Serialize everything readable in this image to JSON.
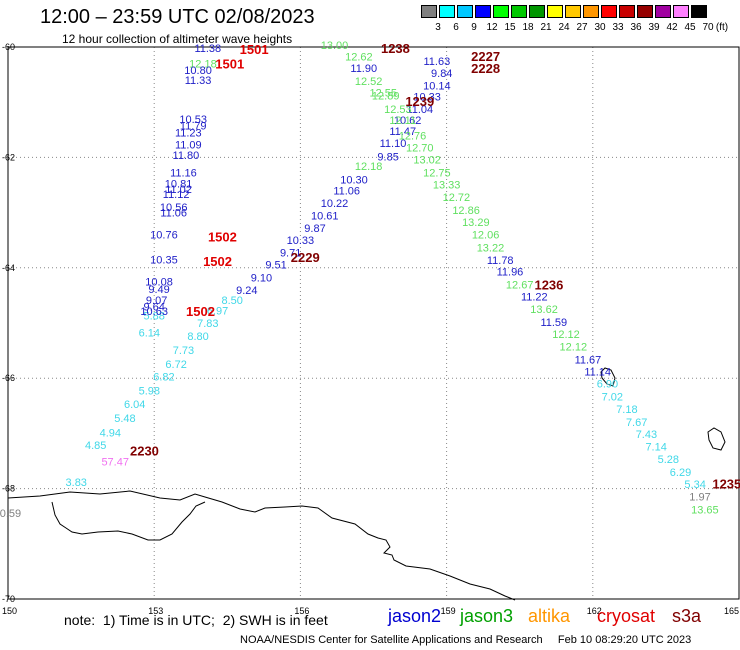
{
  "header": {
    "title": "12:00 – 23:59 UTC 02/08/2023",
    "subtitle": "12 hour collection of altimeter wave heights"
  },
  "legend": {
    "unit": "(ft)",
    "colors": [
      "#808080",
      "#00ffff",
      "#00c8ff",
      "#0000ff",
      "#00ff00",
      "#00c800",
      "#009600",
      "#ffff00",
      "#ffc800",
      "#ff9600",
      "#ff0000",
      "#c80000",
      "#960000",
      "#a000a0",
      "#ff80ff",
      "#000000"
    ],
    "labels": [
      "3",
      "6",
      "9",
      "12",
      "15",
      "18",
      "21",
      "24",
      "27",
      "30",
      "33",
      "36",
      "39",
      "42",
      "45",
      "70"
    ]
  },
  "axes": {
    "lat_labels": [
      "-60",
      "-62",
      "-64",
      "-66",
      "-68",
      "-70"
    ],
    "lon_labels": [
      "150",
      "153",
      "156",
      "159",
      "162",
      "165"
    ]
  },
  "points": [
    {
      "lon": 151.4,
      "lat": -67.88,
      "v": "3.83",
      "c": "#40d8e8"
    },
    {
      "lon": 150.05,
      "lat": -68.44,
      "v": "0.59",
      "c": "#808080"
    },
    {
      "lon": 152.2,
      "lat": -67.51,
      "v": "57.47",
      "c": "#f070f0"
    },
    {
      "lon": 151.8,
      "lat": -67.21,
      "v": "4.85",
      "c": "#40d8e8"
    },
    {
      "lon": 152.1,
      "lat": -66.98,
      "v": "4.94",
      "c": "#40d8e8"
    },
    {
      "lon": 152.4,
      "lat": -66.72,
      "v": "5.48",
      "c": "#40d8e8"
    },
    {
      "lon": 152.6,
      "lat": -66.47,
      "v": "6.04",
      "c": "#40d8e8"
    },
    {
      "lon": 152.9,
      "lat": -66.22,
      "v": "5.98",
      "c": "#40d8e8"
    },
    {
      "lon": 153.2,
      "lat": -65.97,
      "v": "6.82",
      "c": "#40d8e8"
    },
    {
      "lon": 153.45,
      "lat": -65.74,
      "v": "6.72",
      "c": "#40d8e8"
    },
    {
      "lon": 153.6,
      "lat": -65.49,
      "v": "7.73",
      "c": "#40d8e8"
    },
    {
      "lon": 153.9,
      "lat": -65.24,
      "v": "8.80",
      "c": "#40d8e8"
    },
    {
      "lon": 154.1,
      "lat": -65.0,
      "v": "7.83",
      "c": "#40d8e8"
    },
    {
      "lon": 154.3,
      "lat": -64.77,
      "v": "6.97",
      "c": "#40d8e8"
    },
    {
      "lon": 154.6,
      "lat": -64.58,
      "v": "8.50",
      "c": "#40d8e8"
    },
    {
      "lon": 152.9,
      "lat": -65.17,
      "v": "6.14",
      "c": "#40d8e8"
    },
    {
      "lon": 153.0,
      "lat": -64.86,
      "v": "5.88",
      "c": "#40d8e8"
    },
    {
      "lon": 153.0,
      "lat": -64.78,
      "v": "10.63",
      "c": "#2020c8"
    },
    {
      "lon": 153.0,
      "lat": -64.7,
      "v": "9.64",
      "c": "#2020c8"
    },
    {
      "lon": 153.05,
      "lat": -64.58,
      "v": "9.07",
      "c": "#2020c8"
    },
    {
      "lon": 153.1,
      "lat": -64.38,
      "v": "9.49",
      "c": "#2020c8"
    },
    {
      "lon": 153.1,
      "lat": -64.25,
      "v": "10.08",
      "c": "#2020c8"
    },
    {
      "lon": 154.9,
      "lat": -64.4,
      "v": "9.24",
      "c": "#2020c8"
    },
    {
      "lon": 155.2,
      "lat": -64.18,
      "v": "9.10",
      "c": "#2020c8"
    },
    {
      "lon": 155.5,
      "lat": -63.94,
      "v": "9.51",
      "c": "#2020c8"
    },
    {
      "lon": 155.8,
      "lat": -63.72,
      "v": "9.71",
      "c": "#2020c8"
    },
    {
      "lon": 156.0,
      "lat": -63.5,
      "v": "10.33",
      "c": "#2020c8"
    },
    {
      "lon": 156.3,
      "lat": -63.28,
      "v": "9.87",
      "c": "#2020c8"
    },
    {
      "lon": 156.5,
      "lat": -63.05,
      "v": "10.61",
      "c": "#2020c8"
    },
    {
      "lon": 156.7,
      "lat": -62.83,
      "v": "10.22",
      "c": "#2020c8"
    },
    {
      "lon": 156.95,
      "lat": -62.6,
      "v": "11.06",
      "c": "#2020c8"
    },
    {
      "lon": 157.1,
      "lat": -62.4,
      "v": "10.30",
      "c": "#2020c8"
    },
    {
      "lon": 157.4,
      "lat": -62.16,
      "v": "12.18",
      "c": "#60e060"
    },
    {
      "lon": 157.8,
      "lat": -61.98,
      "v": "9.85",
      "c": "#2020c8"
    },
    {
      "lon": 157.9,
      "lat": -61.74,
      "v": "11.10",
      "c": "#2020c8"
    },
    {
      "lon": 158.1,
      "lat": -61.52,
      "v": "11.47",
      "c": "#2020c8"
    },
    {
      "lon": 158.2,
      "lat": -61.32,
      "v": "10.62",
      "c": "#2020c8"
    },
    {
      "lon": 158.45,
      "lat": -61.12,
      "v": "11.04",
      "c": "#2020c8"
    },
    {
      "lon": 158.6,
      "lat": -60.9,
      "v": "10.33",
      "c": "#2020c8"
    },
    {
      "lon": 158.8,
      "lat": -60.7,
      "v": "10.14",
      "c": "#2020c8"
    },
    {
      "lon": 158.9,
      "lat": -60.47,
      "v": "9.84",
      "c": "#2020c8"
    },
    {
      "lon": 158.8,
      "lat": -60.25,
      "v": "11.63",
      "c": "#2020c8"
    },
    {
      "lon": 156.7,
      "lat": -59.96,
      "v": "13.00",
      "c": "#60e060"
    },
    {
      "lon": 157.2,
      "lat": -60.17,
      "v": "12.62",
      "c": "#60e060"
    },
    {
      "lon": 157.3,
      "lat": -60.38,
      "v": "11.90",
      "c": "#2020c8"
    },
    {
      "lon": 157.4,
      "lat": -60.62,
      "v": "12.52",
      "c": "#60e060"
    },
    {
      "lon": 157.7,
      "lat": -60.82,
      "v": "12.55",
      "c": "#60e060"
    },
    {
      "lon": 157.75,
      "lat": -60.88,
      "v": "12.89",
      "c": "#60e060"
    },
    {
      "lon": 158.0,
      "lat": -61.12,
      "v": "12.53",
      "c": "#60e060"
    },
    {
      "lon": 158.1,
      "lat": -61.32,
      "v": "12.11",
      "c": "#60e060"
    },
    {
      "lon": 158.3,
      "lat": -61.6,
      "v": "12.76",
      "c": "#60e060"
    },
    {
      "lon": 158.45,
      "lat": -61.82,
      "v": "12.70",
      "c": "#60e060"
    },
    {
      "lon": 158.6,
      "lat": -62.04,
      "v": "13.02",
      "c": "#60e060"
    },
    {
      "lon": 158.8,
      "lat": -62.27,
      "v": "12.75",
      "c": "#60e060"
    },
    {
      "lon": 159.0,
      "lat": -62.49,
      "v": "13.33",
      "c": "#60e060"
    },
    {
      "lon": 159.2,
      "lat": -62.72,
      "v": "12.72",
      "c": "#60e060"
    },
    {
      "lon": 159.4,
      "lat": -62.95,
      "v": "12.86",
      "c": "#60e060"
    },
    {
      "lon": 159.6,
      "lat": -63.17,
      "v": "13.29",
      "c": "#60e060"
    },
    {
      "lon": 159.8,
      "lat": -63.4,
      "v": "12.06",
      "c": "#60e060"
    },
    {
      "lon": 159.9,
      "lat": -63.63,
      "v": "13.22",
      "c": "#60e060"
    },
    {
      "lon": 160.1,
      "lat": -63.86,
      "v": "11.78",
      "c": "#2020c8"
    },
    {
      "lon": 160.3,
      "lat": -64.07,
      "v": "11.96",
      "c": "#2020c8"
    },
    {
      "lon": 160.5,
      "lat": -64.3,
      "v": "12.67",
      "c": "#60e060"
    },
    {
      "lon": 160.8,
      "lat": -64.52,
      "v": "11.22",
      "c": "#2020c8"
    },
    {
      "lon": 161.0,
      "lat": -64.75,
      "v": "13.62",
      "c": "#60e060"
    },
    {
      "lon": 161.2,
      "lat": -64.98,
      "v": "11.59",
      "c": "#2020c8"
    },
    {
      "lon": 161.45,
      "lat": -65.2,
      "v": "12.12",
      "c": "#60e060"
    },
    {
      "lon": 161.6,
      "lat": -65.43,
      "v": "12.12",
      "c": "#60e060"
    },
    {
      "lon": 161.9,
      "lat": -65.66,
      "v": "11.67",
      "c": "#2020c8"
    },
    {
      "lon": 162.1,
      "lat": -65.88,
      "v": "11.14",
      "c": "#2020c8"
    },
    {
      "lon": 162.3,
      "lat": -66.1,
      "v": "6.90",
      "c": "#40d8e8"
    },
    {
      "lon": 162.4,
      "lat": -66.33,
      "v": "7.02",
      "c": "#40d8e8"
    },
    {
      "lon": 162.7,
      "lat": -66.56,
      "v": "7.18",
      "c": "#40d8e8"
    },
    {
      "lon": 162.9,
      "lat": -66.79,
      "v": "7.67",
      "c": "#40d8e8"
    },
    {
      "lon": 163.1,
      "lat": -67.01,
      "v": "7.43",
      "c": "#40d8e8"
    },
    {
      "lon": 163.3,
      "lat": -67.24,
      "v": "7.14",
      "c": "#40d8e8"
    },
    {
      "lon": 163.55,
      "lat": -67.46,
      "v": "5.28",
      "c": "#40d8e8"
    },
    {
      "lon": 163.8,
      "lat": -67.7,
      "v": "6.29",
      "c": "#40d8e8"
    },
    {
      "lon": 164.1,
      "lat": -67.92,
      "v": "5.34",
      "c": "#40d8e8"
    },
    {
      "lon": 164.2,
      "lat": -68.14,
      "v": "1.97",
      "c": "#808080"
    },
    {
      "lon": 164.3,
      "lat": -68.38,
      "v": "13.65",
      "c": "#60e060"
    },
    {
      "lon": 154.1,
      "lat": -60.02,
      "v": "11.38",
      "c": "#2020c8"
    },
    {
      "lon": 154.0,
      "lat": -60.3,
      "v": "12.18",
      "c": "#60e060"
    },
    {
      "lon": 153.9,
      "lat": -60.42,
      "v": "10.80",
      "c": "#2020c8"
    },
    {
      "lon": 153.9,
      "lat": -60.6,
      "v": "11.33",
      "c": "#2020c8"
    },
    {
      "lon": 153.8,
      "lat": -61.3,
      "v": "10.53",
      "c": "#2020c8"
    },
    {
      "lon": 153.8,
      "lat": -61.42,
      "v": "11.79",
      "c": "#2020c8"
    },
    {
      "lon": 153.7,
      "lat": -61.55,
      "v": "11.23",
      "c": "#2020c8"
    },
    {
      "lon": 153.7,
      "lat": -61.77,
      "v": "11.09",
      "c": "#2020c8"
    },
    {
      "lon": 153.65,
      "lat": -61.96,
      "v": "11.80",
      "c": "#2020c8"
    },
    {
      "lon": 153.6,
      "lat": -62.27,
      "v": "11.16",
      "c": "#2020c8"
    },
    {
      "lon": 153.5,
      "lat": -62.47,
      "v": "10.81",
      "c": "#2020c8"
    },
    {
      "lon": 153.5,
      "lat": -62.57,
      "v": "11.02",
      "c": "#2020c8"
    },
    {
      "lon": 153.45,
      "lat": -62.66,
      "v": "11.12",
      "c": "#2020c8"
    },
    {
      "lon": 153.4,
      "lat": -62.9,
      "v": "10.56",
      "c": "#2020c8"
    },
    {
      "lon": 153.4,
      "lat": -63.0,
      "v": "11.06",
      "c": "#2020c8"
    },
    {
      "lon": 153.2,
      "lat": -63.4,
      "v": "10.76",
      "c": "#2020c8"
    },
    {
      "lon": 153.2,
      "lat": -63.85,
      "v": "10.35",
      "c": "#2020c8"
    }
  ],
  "times": [
    {
      "lon": 155.05,
      "lat": -60.04,
      "t": "1501",
      "c": "#e00000"
    },
    {
      "lon": 154.55,
      "lat": -60.3,
      "t": "1501",
      "c": "#e00000"
    },
    {
      "lon": 157.95,
      "lat": -60.02,
      "t": "1238",
      "c": "#800000"
    },
    {
      "lon": 158.45,
      "lat": -60.98,
      "t": "1239",
      "c": "#800000"
    },
    {
      "lon": 159.8,
      "lat": -60.16,
      "t": "2227",
      "c": "#800000"
    },
    {
      "lon": 159.8,
      "lat": -60.38,
      "t": "2228",
      "c": "#800000"
    },
    {
      "lon": 154.4,
      "lat": -63.43,
      "t": "1502",
      "c": "#e00000"
    },
    {
      "lon": 154.3,
      "lat": -63.88,
      "t": "1502",
      "c": "#e00000"
    },
    {
      "lon": 156.1,
      "lat": -63.8,
      "t": "2229",
      "c": "#800000"
    },
    {
      "lon": 153.95,
      "lat": -64.78,
      "t": "1502",
      "c": "#e00000"
    },
    {
      "lon": 161.1,
      "lat": -64.3,
      "t": "1236",
      "c": "#800000"
    },
    {
      "lon": 152.8,
      "lat": -67.31,
      "t": "2230",
      "c": "#800000"
    },
    {
      "lon": 164.75,
      "lat": -67.91,
      "t": "1235",
      "c": "#800000"
    }
  ],
  "bottom": {
    "note": "note:  1) Time is in UTC;  2) SWH is in feet",
    "satellites": [
      {
        "name": "jason2",
        "color": "#0000d0"
      },
      {
        "name": "jason3",
        "color": "#00a000"
      },
      {
        "name": "altika",
        "color": "#ff9600"
      },
      {
        "name": "cryosat",
        "color": "#e00000"
      },
      {
        "name": "s3a",
        "color": "#800000"
      }
    ],
    "footer": "NOAA/NESDIS Center for Satellite Applications and Research     Feb 10 08:29:20 UTC 2023"
  }
}
